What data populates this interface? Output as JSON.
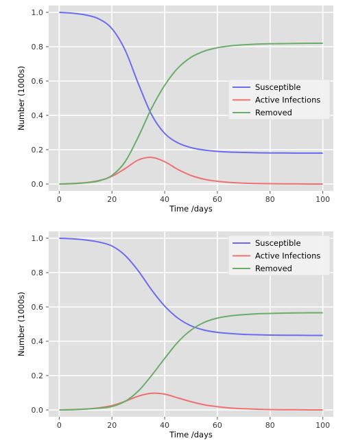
{
  "chart_data": [
    {
      "type": "line",
      "xlabel": "Time /days",
      "ylabel": "Number (1000s)",
      "xlim": [
        -4,
        104
      ],
      "ylim": [
        -0.04,
        1.04
      ],
      "xticks": [
        0,
        20,
        40,
        60,
        80,
        100
      ],
      "yticks": [
        0.0,
        0.2,
        0.4,
        0.6,
        0.8,
        1.0
      ],
      "xtick_labels": [
        "0",
        "20",
        "40",
        "60",
        "80",
        "100"
      ],
      "ytick_labels": [
        "0.0",
        "0.2",
        "0.4",
        "0.6",
        "0.8",
        "1.0"
      ],
      "grid": true,
      "background": "#e0e0e0",
      "legend_position": "center-right",
      "x": [
        0,
        5,
        10,
        15,
        20,
        25,
        30,
        35,
        40,
        45,
        50,
        55,
        60,
        65,
        70,
        75,
        80,
        85,
        90,
        95,
        100
      ],
      "series": [
        {
          "name": "Susceptible",
          "color": "#6b6bf0",
          "values": [
            1.0,
            0.995,
            0.985,
            0.962,
            0.905,
            0.78,
            0.585,
            0.405,
            0.295,
            0.24,
            0.212,
            0.198,
            0.19,
            0.186,
            0.184,
            0.182,
            0.181,
            0.181,
            0.18,
            0.18,
            0.18
          ]
        },
        {
          "name": "Active Infections",
          "color": "#f07070",
          "values": [
            0.0,
            0.003,
            0.008,
            0.02,
            0.045,
            0.09,
            0.14,
            0.155,
            0.13,
            0.085,
            0.05,
            0.028,
            0.016,
            0.009,
            0.005,
            0.003,
            0.002,
            0.001,
            0.001,
            0.0,
            0.0
          ]
        },
        {
          "name": "Removed",
          "color": "#6aac6a",
          "values": [
            0.0,
            0.002,
            0.007,
            0.018,
            0.05,
            0.13,
            0.275,
            0.44,
            0.575,
            0.675,
            0.738,
            0.774,
            0.794,
            0.805,
            0.811,
            0.815,
            0.817,
            0.818,
            0.819,
            0.82,
            0.82
          ]
        }
      ]
    },
    {
      "type": "line",
      "xlabel": "Time /days",
      "ylabel": "Number (1000s)",
      "xlim": [
        -4,
        104
      ],
      "ylim": [
        -0.04,
        1.04
      ],
      "xticks": [
        0,
        20,
        40,
        60,
        80,
        100
      ],
      "yticks": [
        0.0,
        0.2,
        0.4,
        0.6,
        0.8,
        1.0
      ],
      "xtick_labels": [
        "0",
        "20",
        "40",
        "60",
        "80",
        "100"
      ],
      "ytick_labels": [
        "0.0",
        "0.2",
        "0.4",
        "0.6",
        "0.8",
        "1.0"
      ],
      "grid": true,
      "background": "#e0e0e0",
      "legend_position": "top-right",
      "x": [
        0,
        5,
        10,
        15,
        20,
        25,
        30,
        35,
        40,
        45,
        50,
        55,
        60,
        65,
        70,
        75,
        80,
        85,
        90,
        95,
        100
      ],
      "series": [
        {
          "name": "Susceptible",
          "color": "#6b6bf0",
          "values": [
            1.0,
            0.997,
            0.99,
            0.978,
            0.955,
            0.9,
            0.81,
            0.7,
            0.605,
            0.535,
            0.49,
            0.465,
            0.452,
            0.445,
            0.44,
            0.438,
            0.436,
            0.435,
            0.435,
            0.434,
            0.434
          ]
        },
        {
          "name": "Active Infections",
          "color": "#f07070",
          "values": [
            0.0,
            0.002,
            0.005,
            0.012,
            0.025,
            0.05,
            0.08,
            0.097,
            0.092,
            0.07,
            0.048,
            0.03,
            0.019,
            0.011,
            0.007,
            0.004,
            0.002,
            0.001,
            0.001,
            0.0,
            0.0
          ]
        },
        {
          "name": "Removed",
          "color": "#6aac6a",
          "values": [
            0.0,
            0.001,
            0.005,
            0.01,
            0.02,
            0.05,
            0.11,
            0.2,
            0.3,
            0.395,
            0.465,
            0.51,
            0.535,
            0.548,
            0.555,
            0.56,
            0.562,
            0.564,
            0.565,
            0.566,
            0.566
          ]
        }
      ]
    }
  ]
}
